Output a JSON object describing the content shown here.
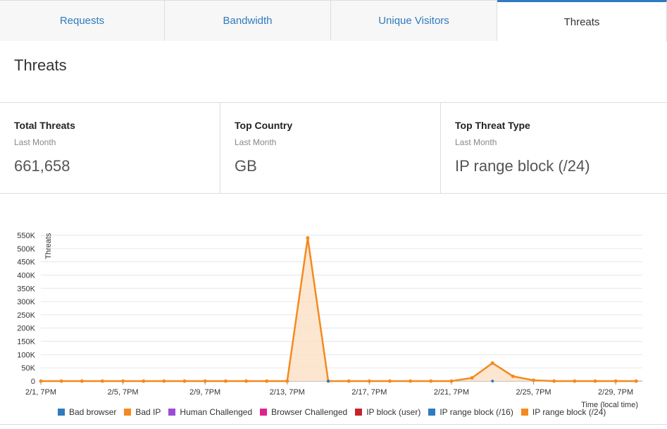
{
  "tabs": [
    {
      "label": "Requests",
      "width": 234
    },
    {
      "label": "Bandwidth",
      "width": 236
    },
    {
      "label": "Unique Visitors",
      "width": 236
    },
    {
      "label": "Threats",
      "width": 241
    }
  ],
  "card_title": "Threats",
  "stats": [
    {
      "label": "Total Threats",
      "sub": "Last Month",
      "value": "661,658"
    },
    {
      "label": "Top Country",
      "sub": "Last Month",
      "value": "GB"
    },
    {
      "label": "Top Threat Type",
      "sub": "Last Month",
      "value": "IP range block (/24)"
    }
  ],
  "chart_data": {
    "type": "area",
    "ylabel": "Threats",
    "xlabel": "Time (local time)",
    "ylim": [
      0,
      550000
    ],
    "y_ticks": [
      "0",
      "50K",
      "100K",
      "150K",
      "200K",
      "250K",
      "300K",
      "350K",
      "400K",
      "450K",
      "500K",
      "550K"
    ],
    "x_tick_labels": [
      "2/1, 7PM",
      "2/5, 7PM",
      "2/9, 7PM",
      "2/13, 7PM",
      "2/17, 7PM",
      "2/21, 7PM",
      "2/25, 7PM",
      "2/29, 7PM"
    ],
    "x_tick_days": [
      0,
      4,
      8,
      12,
      16,
      20,
      24,
      28
    ],
    "grid": true,
    "legend_position": "bottom",
    "series": [
      {
        "name": "Bad browser",
        "color": "#2f7bbf",
        "values": []
      },
      {
        "name": "Bad IP",
        "color": "#f5891f",
        "values": []
      },
      {
        "name": "Human Challenged",
        "color": "#9b4bd8",
        "values": []
      },
      {
        "name": "Browser Challenged",
        "color": "#e0218a",
        "values": []
      },
      {
        "name": "IP block (user)",
        "color": "#c8232c",
        "values": []
      },
      {
        "name": "IP range block (/16)",
        "color": "#2f7bbf",
        "values": []
      },
      {
        "name": "IP range block (/24)",
        "color": "#f5891f",
        "x": [
          0,
          1,
          2,
          3,
          4,
          5,
          6,
          7,
          8,
          9,
          10,
          11,
          12,
          13,
          14,
          15,
          16,
          17,
          18,
          19,
          20,
          21,
          22,
          23,
          24,
          25,
          26,
          27,
          28,
          29
        ],
        "values": [
          0,
          0,
          0,
          0,
          0,
          0,
          0,
          0,
          0,
          0,
          0,
          0,
          0,
          540000,
          0,
          0,
          0,
          0,
          0,
          0,
          0,
          12000,
          68000,
          18000,
          3000,
          0,
          0,
          0,
          0,
          0
        ]
      }
    ]
  }
}
